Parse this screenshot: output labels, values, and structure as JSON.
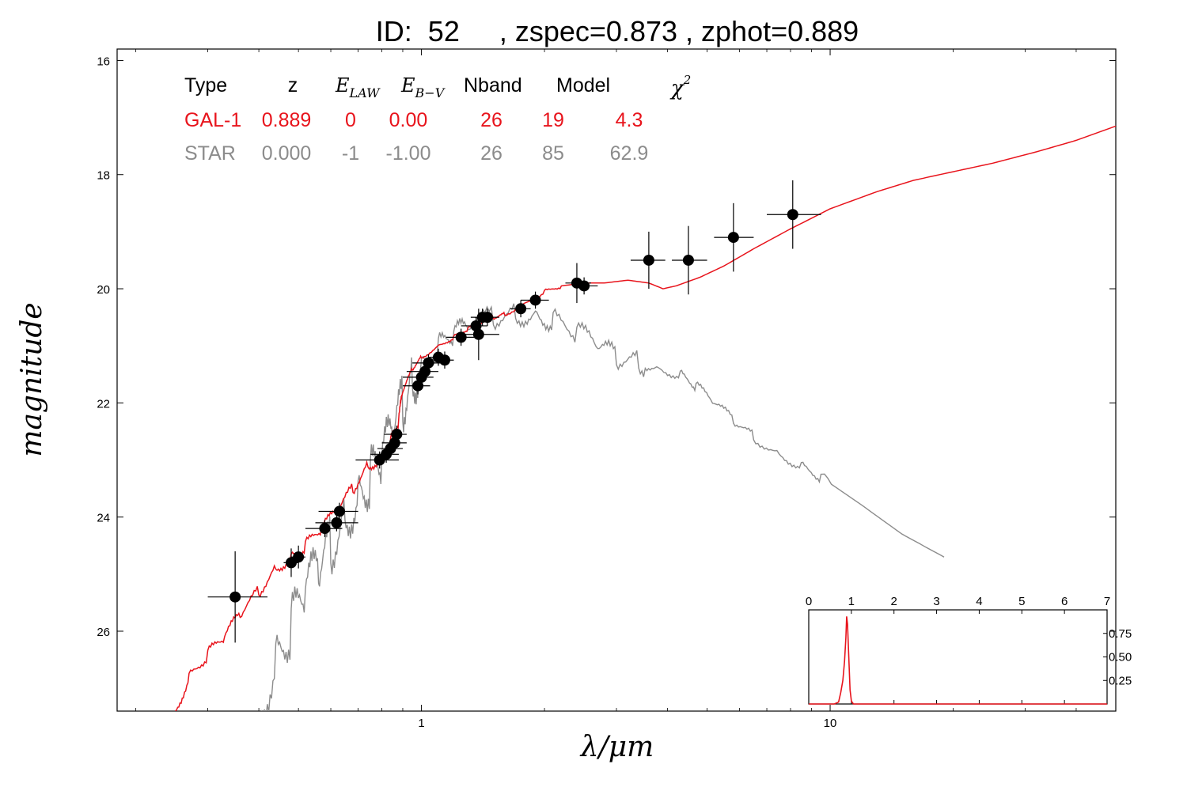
{
  "title": "ID:  52     , zspec=0.873 , zphot=0.889",
  "colors": {
    "galaxy": "#e8141c",
    "star": "#8c8c8c",
    "points": "#000000"
  },
  "table": {
    "headers": [
      "Type",
      "z",
      "E",
      "LAW",
      "E",
      "B−V",
      "Nband",
      "Model",
      "χ",
      "2"
    ],
    "rows": [
      {
        "cells": [
          "GAL-1",
          "0.889",
          "0",
          "0.00",
          "26",
          "19",
          "4.3"
        ],
        "color": "#e8141c"
      },
      {
        "cells": [
          "STAR",
          "0.000",
          "-1",
          "-1.00",
          "26",
          "85",
          "62.9"
        ],
        "color": "#8c8c8c"
      }
    ]
  },
  "chart_data": {
    "type": "scatter",
    "xlabel": "λ/μm",
    "ylabel": "magnitude",
    "xscale": "log",
    "xlim": [
      0.18,
      50
    ],
    "ylim": [
      27.4,
      15.8
    ],
    "y_inverted": true,
    "xticks": [
      "1",
      "10"
    ],
    "yticks": [
      "16",
      "18",
      "20",
      "22",
      "24",
      "26"
    ],
    "series": [
      {
        "kind": "photometry",
        "points": [
          {
            "x": 0.35,
            "y": 25.4,
            "xerr": [
              0.3,
              0.42
            ],
            "yerr": 0.8
          },
          {
            "x": 0.48,
            "y": 24.8,
            "xerr": [
              0.46,
              0.5
            ],
            "yerr": 0.25
          },
          {
            "x": 0.5,
            "y": 24.7,
            "xerr": [
              0.48,
              0.52
            ],
            "yerr": 0.2
          },
          {
            "x": 0.58,
            "y": 24.2,
            "xerr": [
              0.52,
              0.64
            ],
            "yerr": 0.15
          },
          {
            "x": 0.62,
            "y": 24.1,
            "xerr": [
              0.55,
              0.7
            ],
            "yerr": 0.15
          },
          {
            "x": 0.63,
            "y": 23.9,
            "xerr": [
              0.56,
              0.7
            ],
            "yerr": 0.15
          },
          {
            "x": 0.79,
            "y": 23.0,
            "xerr": [
              0.69,
              0.88
            ],
            "yerr": 0.15
          },
          {
            "x": 0.82,
            "y": 22.9,
            "xerr": [
              0.75,
              0.88
            ],
            "yerr": 0.15
          },
          {
            "x": 0.84,
            "y": 22.8,
            "xerr": [
              0.78,
              0.9
            ],
            "yerr": 0.15
          },
          {
            "x": 0.86,
            "y": 22.7,
            "xerr": [
              0.8,
              0.92
            ],
            "yerr": 0.15
          },
          {
            "x": 0.87,
            "y": 22.55,
            "xerr": [
              0.81,
              0.92
            ],
            "yerr": 0.15
          },
          {
            "x": 0.98,
            "y": 21.7,
            "xerr": [
              0.9,
              1.05
            ],
            "yerr": 0.15
          },
          {
            "x": 1.0,
            "y": 21.55,
            "xerr": [
              0.9,
              1.07
            ],
            "yerr": 0.15
          },
          {
            "x": 1.02,
            "y": 21.45,
            "xerr": [
              0.92,
              1.1
            ],
            "yerr": 0.15
          },
          {
            "x": 1.04,
            "y": 21.3,
            "xerr": [
              0.95,
              1.12
            ],
            "yerr": 0.15
          },
          {
            "x": 1.1,
            "y": 21.2,
            "xerr": [
              1.04,
              1.16
            ],
            "yerr": 0.15
          },
          {
            "x": 1.14,
            "y": 21.25,
            "xerr": [
              1.08,
              1.2
            ],
            "yerr": 0.15
          },
          {
            "x": 1.25,
            "y": 20.85,
            "xerr": [
              1.15,
              1.35
            ],
            "yerr": 0.15
          },
          {
            "x": 1.36,
            "y": 20.65,
            "xerr": [
              1.25,
              1.45
            ],
            "yerr": 0.15
          },
          {
            "x": 1.38,
            "y": 20.8,
            "xerr": [
              1.25,
              1.55
            ],
            "yerr": 0.45
          },
          {
            "x": 1.41,
            "y": 20.5,
            "xerr": [
              1.32,
              1.5
            ],
            "yerr": 0.15
          },
          {
            "x": 1.45,
            "y": 20.5,
            "xerr": [
              1.35,
              1.55
            ],
            "yerr": 0.15
          },
          {
            "x": 1.75,
            "y": 20.35,
            "xerr": [
              1.65,
              1.85
            ],
            "yerr": 0.15
          },
          {
            "x": 1.9,
            "y": 20.2,
            "xerr": [
              1.75,
              2.05
            ],
            "yerr": 0.15
          },
          {
            "x": 2.4,
            "y": 19.9,
            "xerr": [
              2.25,
              2.6
            ],
            "yerr": 0.35
          },
          {
            "x": 2.5,
            "y": 19.95,
            "xerr": [
              2.35,
              2.7
            ],
            "yerr": 0.15
          },
          {
            "x": 3.6,
            "y": 19.5,
            "xerr": [
              3.25,
              3.95
            ],
            "yerr": 0.5
          },
          {
            "x": 4.5,
            "y": 19.5,
            "xerr": [
              4.1,
              5.0
            ],
            "yerr": 0.6
          },
          {
            "x": 5.8,
            "y": 19.1,
            "xerr": [
              5.2,
              6.5
            ],
            "yerr": 0.6
          },
          {
            "x": 8.1,
            "y": 18.7,
            "xerr": [
              7.0,
              9.5
            ],
            "yerr": 0.6
          }
        ]
      },
      {
        "kind": "galaxy-template",
        "x": [
          0.25,
          0.27,
          0.3,
          0.33,
          0.36,
          0.4,
          0.44,
          0.48,
          0.52,
          0.57,
          0.62,
          0.68,
          0.74,
          0.8,
          0.84,
          0.88,
          0.9,
          0.95,
          1.0,
          1.1,
          1.2,
          1.3,
          1.4,
          1.5,
          1.6,
          1.8,
          2.0,
          2.2,
          2.5,
          2.8,
          3.2,
          3.6,
          3.9,
          4.2,
          4.8,
          5.5,
          6.5,
          8.0,
          10.0,
          13.0,
          16.0,
          20.0,
          25.0,
          32.0,
          40.0,
          50.0
        ],
        "y": [
          27.4,
          26.8,
          26.4,
          26.1,
          25.7,
          25.3,
          24.9,
          24.7,
          24.5,
          24.2,
          23.9,
          23.5,
          23.1,
          22.95,
          22.7,
          22.3,
          21.8,
          21.4,
          21.2,
          21.0,
          20.85,
          20.7,
          20.6,
          20.5,
          20.45,
          20.25,
          20.05,
          19.95,
          19.9,
          19.9,
          19.85,
          19.9,
          20.0,
          19.95,
          19.8,
          19.6,
          19.3,
          18.95,
          18.6,
          18.3,
          18.1,
          17.95,
          17.8,
          17.6,
          17.4,
          17.15
        ]
      },
      {
        "kind": "star-template",
        "x": [
          0.4,
          0.44,
          0.48,
          0.52,
          0.56,
          0.6,
          0.65,
          0.7,
          0.75,
          0.8,
          0.85,
          0.9,
          0.95,
          1.0,
          1.1,
          1.2,
          1.3,
          1.5,
          1.7,
          1.9,
          2.1,
          2.4,
          2.7,
          3.0,
          3.4,
          3.8,
          4.3,
          4.7,
          5.2,
          5.8,
          6.5,
          7.5,
          8.5,
          9.5,
          12.0,
          15.0,
          19.0
        ],
        "y": [
          27.4,
          26.5,
          25.9,
          25.3,
          24.9,
          24.5,
          24.0,
          23.6,
          23.3,
          23.0,
          22.5,
          22.0,
          21.6,
          21.3,
          21.0,
          20.8,
          20.65,
          20.5,
          20.45,
          20.45,
          20.55,
          20.75,
          21.0,
          21.2,
          21.3,
          21.4,
          21.5,
          21.7,
          22.0,
          22.3,
          22.6,
          22.9,
          23.1,
          23.3,
          23.8,
          24.3,
          24.7
        ]
      }
    ],
    "inset": {
      "type": "line",
      "xlim": [
        0,
        7
      ],
      "ylim": [
        0,
        1.0
      ],
      "xticks": [
        "0",
        "1",
        "2",
        "3",
        "4",
        "5",
        "6",
        "7"
      ],
      "yticks": [
        "0.25",
        "0.50",
        "0.75"
      ],
      "x": [
        0,
        0.6,
        0.7,
        0.75,
        0.8,
        0.84,
        0.87,
        0.89,
        0.91,
        0.94,
        0.97,
        1.0,
        1.05,
        1.2,
        7.0
      ],
      "y": [
        0,
        0,
        0.02,
        0.12,
        0.25,
        0.45,
        0.7,
        0.93,
        0.85,
        0.5,
        0.15,
        0.03,
        0,
        0,
        0
      ]
    }
  }
}
